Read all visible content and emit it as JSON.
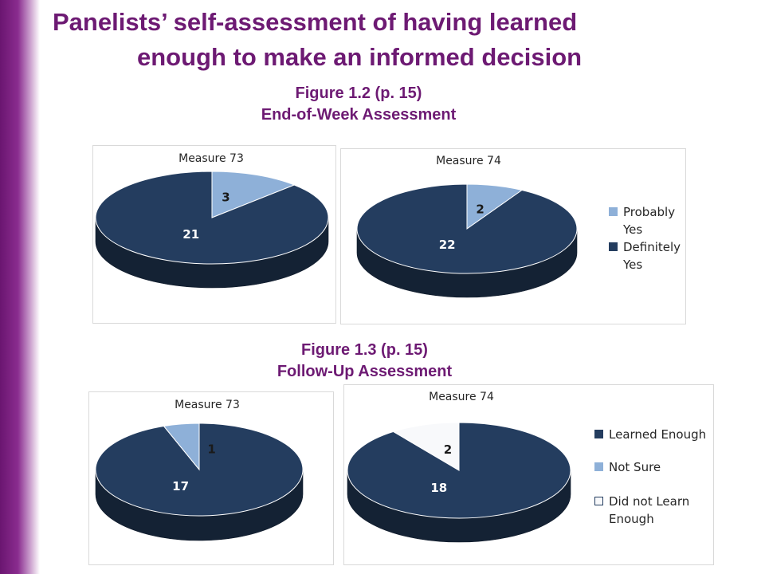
{
  "title": {
    "line1": "Panelists’ self-assessment of having learned",
    "line2": "enough to make an informed decision"
  },
  "figures": [
    {
      "caption": "Figure 1.2 (p. 15)",
      "subtitle": "End-of-Week Assessment"
    },
    {
      "caption": "Figure 1.3 (p. 15)",
      "subtitle": "Follow-Up Assessment"
    }
  ],
  "legends": {
    "end_of_week": [
      "Probably Yes",
      "Definitely Yes"
    ],
    "follow_up": [
      "Learned Enough",
      "Not Sure",
      "Did not Learn Enough"
    ]
  },
  "colors": {
    "dark_navy": "#243d5f",
    "light_blue": "#8eb0d8",
    "white_slice": "#f8f9fb",
    "title_purple": "#6d1a73"
  },
  "chart_data": [
    {
      "type": "pie",
      "title": "Measure 73",
      "figure": "Figure 1.2 (p. 15) End-of-Week Assessment",
      "categories": [
        "Probably Yes",
        "Definitely Yes"
      ],
      "values": [
        3,
        21
      ],
      "colors": [
        "#8eb0d8",
        "#243d5f"
      ],
      "three_d": true,
      "legend": "none"
    },
    {
      "type": "pie",
      "title": "Measure 74",
      "figure": "Figure 1.2 (p. 15) End-of-Week Assessment",
      "categories": [
        "Probably Yes",
        "Definitely Yes"
      ],
      "values": [
        2,
        22
      ],
      "colors": [
        "#8eb0d8",
        "#243d5f"
      ],
      "three_d": true,
      "legend": "right"
    },
    {
      "type": "pie",
      "title": "Measure 73",
      "figure": "Figure 1.3 (p. 15) Follow-Up Assessment",
      "categories": [
        "Learned Enough",
        "Not Sure",
        "Did not Learn Enough"
      ],
      "values": [
        17,
        1,
        0
      ],
      "colors": [
        "#243d5f",
        "#8eb0d8",
        "#f8f9fb"
      ],
      "three_d": true,
      "legend": "none"
    },
    {
      "type": "pie",
      "title": "Measure 74",
      "figure": "Figure 1.3 (p. 15) Follow-Up Assessment",
      "categories": [
        "Learned Enough",
        "Not Sure",
        "Did not Learn Enough"
      ],
      "values": [
        18,
        0,
        2
      ],
      "colors": [
        "#243d5f",
        "#8eb0d8",
        "#f8f9fb"
      ],
      "three_d": true,
      "legend": "right"
    }
  ]
}
